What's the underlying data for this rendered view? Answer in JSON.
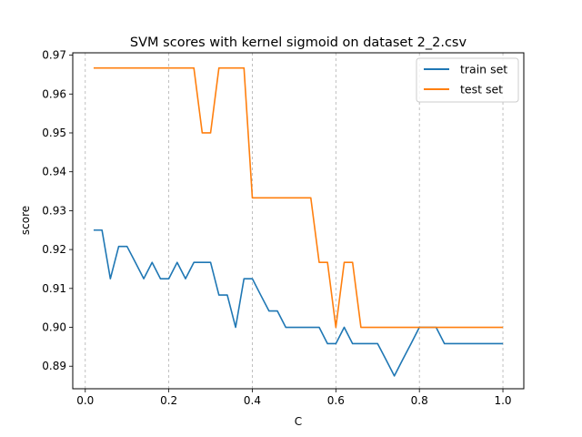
{
  "chart_data": {
    "type": "line",
    "title": "SVM scores with kernel sigmoid on dataset 2_2.csv",
    "xlabel": "C",
    "ylabel": "score",
    "xlim": [
      -0.03,
      1.05
    ],
    "ylim": [
      0.8842,
      0.9706
    ],
    "x_ticks": [
      0.0,
      0.2,
      0.4,
      0.6,
      0.8,
      1.0
    ],
    "x_tick_labels": [
      "0.0",
      "0.2",
      "0.4",
      "0.6",
      "0.8",
      "1.0"
    ],
    "y_ticks": [
      0.89,
      0.9,
      0.91,
      0.92,
      0.93,
      0.94,
      0.95,
      0.96,
      0.97
    ],
    "y_tick_labels": [
      "0.89",
      "0.90",
      "0.91",
      "0.92",
      "0.93",
      "0.94",
      "0.95",
      "0.96",
      "0.97"
    ],
    "grid": "x-only, dashed",
    "legend_position": "top-right",
    "series": [
      {
        "name": "train set",
        "color": "#1f77b4",
        "points": [
          [
            0.02,
            0.925
          ],
          [
            0.04,
            0.925
          ],
          [
            0.06,
            0.9125
          ],
          [
            0.08,
            0.9208
          ],
          [
            0.1,
            0.9208
          ],
          [
            0.12,
            0.9167
          ],
          [
            0.14,
            0.9125
          ],
          [
            0.16,
            0.9167
          ],
          [
            0.18,
            0.9125
          ],
          [
            0.2,
            0.9125
          ],
          [
            0.22,
            0.9167
          ],
          [
            0.24,
            0.9125
          ],
          [
            0.26,
            0.9167
          ],
          [
            0.28,
            0.9167
          ],
          [
            0.3,
            0.9167
          ],
          [
            0.32,
            0.9083
          ],
          [
            0.34,
            0.9083
          ],
          [
            0.36,
            0.9
          ],
          [
            0.38,
            0.9125
          ],
          [
            0.4,
            0.9125
          ],
          [
            0.42,
            0.9083
          ],
          [
            0.44,
            0.9042
          ],
          [
            0.46,
            0.9042
          ],
          [
            0.48,
            0.9
          ],
          [
            0.5,
            0.9
          ],
          [
            0.52,
            0.9
          ],
          [
            0.54,
            0.9
          ],
          [
            0.56,
            0.9
          ],
          [
            0.58,
            0.8958
          ],
          [
            0.6,
            0.8958
          ],
          [
            0.62,
            0.9
          ],
          [
            0.64,
            0.8958
          ],
          [
            0.66,
            0.8958
          ],
          [
            0.68,
            0.8958
          ],
          [
            0.7,
            0.8958
          ],
          [
            0.72,
            0.8917
          ],
          [
            0.74,
            0.8875
          ],
          [
            0.76,
            0.8917
          ],
          [
            0.78,
            0.8958
          ],
          [
            0.8,
            0.9
          ],
          [
            0.82,
            0.9
          ],
          [
            0.84,
            0.9
          ],
          [
            0.86,
            0.8958
          ],
          [
            0.88,
            0.8958
          ],
          [
            0.9,
            0.8958
          ],
          [
            0.92,
            0.8958
          ],
          [
            0.94,
            0.8958
          ],
          [
            0.96,
            0.8958
          ],
          [
            0.98,
            0.8958
          ],
          [
            1.0,
            0.8958
          ]
        ]
      },
      {
        "name": "test set",
        "color": "#ff7f0e",
        "points": [
          [
            0.02,
            0.9667
          ],
          [
            0.04,
            0.9667
          ],
          [
            0.06,
            0.9667
          ],
          [
            0.08,
            0.9667
          ],
          [
            0.1,
            0.9667
          ],
          [
            0.12,
            0.9667
          ],
          [
            0.14,
            0.9667
          ],
          [
            0.16,
            0.9667
          ],
          [
            0.18,
            0.9667
          ],
          [
            0.2,
            0.9667
          ],
          [
            0.22,
            0.9667
          ],
          [
            0.24,
            0.9667
          ],
          [
            0.26,
            0.9667
          ],
          [
            0.28,
            0.95
          ],
          [
            0.3,
            0.95
          ],
          [
            0.32,
            0.9667
          ],
          [
            0.34,
            0.9667
          ],
          [
            0.36,
            0.9667
          ],
          [
            0.38,
            0.9667
          ],
          [
            0.4,
            0.9333
          ],
          [
            0.42,
            0.9333
          ],
          [
            0.44,
            0.9333
          ],
          [
            0.46,
            0.9333
          ],
          [
            0.48,
            0.9333
          ],
          [
            0.5,
            0.9333
          ],
          [
            0.52,
            0.9333
          ],
          [
            0.54,
            0.9333
          ],
          [
            0.56,
            0.9167
          ],
          [
            0.58,
            0.9167
          ],
          [
            0.6,
            0.9
          ],
          [
            0.62,
            0.9167
          ],
          [
            0.64,
            0.9167
          ],
          [
            0.66,
            0.9
          ],
          [
            0.68,
            0.9
          ],
          [
            0.7,
            0.9
          ],
          [
            0.72,
            0.9
          ],
          [
            0.74,
            0.9
          ],
          [
            0.76,
            0.9
          ],
          [
            0.78,
            0.9
          ],
          [
            0.8,
            0.9
          ],
          [
            0.82,
            0.9
          ],
          [
            0.84,
            0.9
          ],
          [
            0.86,
            0.9
          ],
          [
            0.88,
            0.9
          ],
          [
            0.9,
            0.9
          ],
          [
            0.92,
            0.9
          ],
          [
            0.94,
            0.9
          ],
          [
            0.96,
            0.9
          ],
          [
            0.98,
            0.9
          ],
          [
            1.0,
            0.9
          ]
        ]
      }
    ]
  }
}
